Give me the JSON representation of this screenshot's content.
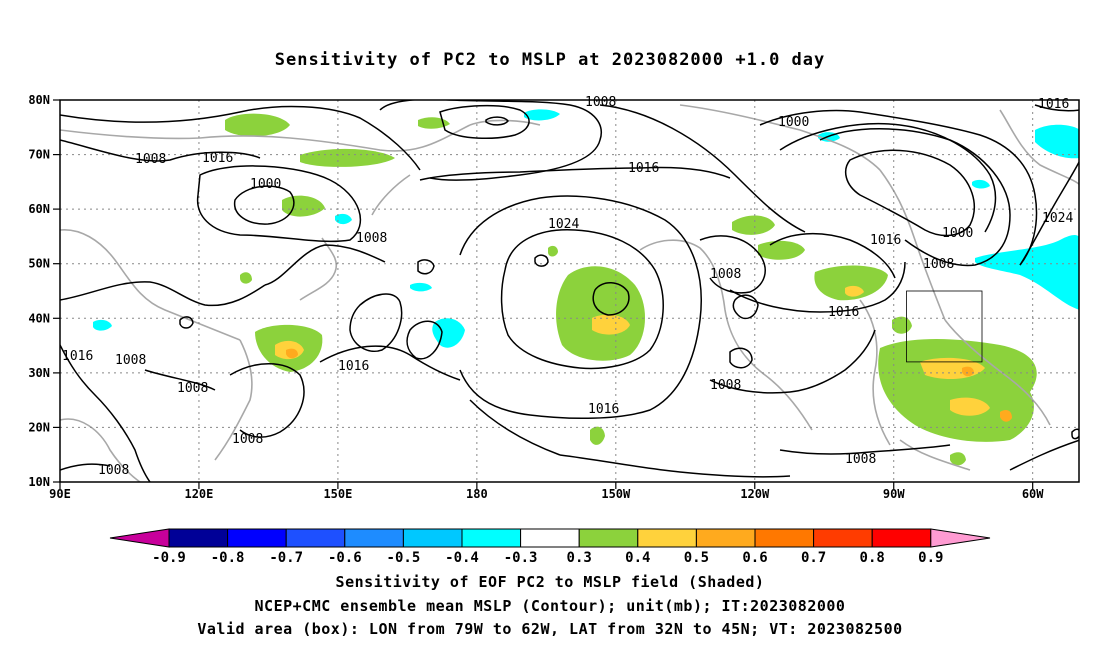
{
  "title": "Sensitivity of PC2 to MSLP at 2023082000 +1.0 day",
  "captions": {
    "line1": "Sensitivity of EOF PC2 to MSLP field (Shaded)",
    "line2": "NCEP+CMC ensemble mean MSLP (Contour); unit(mb); IT:2023082000",
    "line3": "Valid area (box): LON from 79W to 62W, LAT from 32N to 45N; VT: 2023082500"
  },
  "map": {
    "lon_range": [
      90,
      310
    ],
    "lat_range": [
      10,
      80
    ],
    "x_ticks": [
      "90E",
      "120E",
      "150E",
      "180",
      "150W",
      "120W",
      "90W",
      "60W"
    ],
    "y_ticks": [
      "10N",
      "20N",
      "30N",
      "40N",
      "50N",
      "60N",
      "70N",
      "80N"
    ],
    "grid": true,
    "valid_box": {
      "lon_from": "79W",
      "lon_to": "62W",
      "lat_from": "32N",
      "lat_to": "45N"
    }
  },
  "contour_labels": [
    "1008",
    "1016",
    "1000",
    "1008",
    "1016",
    "1024",
    "1008",
    "1008",
    "1016",
    "1000",
    "1016",
    "1024",
    "1008",
    "1016",
    "1016",
    "1008",
    "1008",
    "1008",
    "1008",
    "1016",
    "1008",
    "1008",
    "1000",
    "1016",
    "1008",
    "1016"
  ],
  "colorbar": {
    "labels": [
      "-0.9",
      "-0.8",
      "-0.7",
      "-0.6",
      "-0.5",
      "-0.4",
      "-0.3",
      "0.3",
      "0.4",
      "0.5",
      "0.6",
      "0.7",
      "0.8",
      "0.9"
    ],
    "colors": [
      "#000097",
      "#0000ff",
      "#1e50ff",
      "#1e8cff",
      "#00c8ff",
      "#00ffff",
      "#ffffff",
      "#8cd23c",
      "#ffd23c",
      "#ffaa1e",
      "#ff7800",
      "#ff3c00",
      "#ff0000"
    ],
    "left_arrow_color": "#c8009b",
    "right_arrow_color": "#ff9bd2"
  }
}
